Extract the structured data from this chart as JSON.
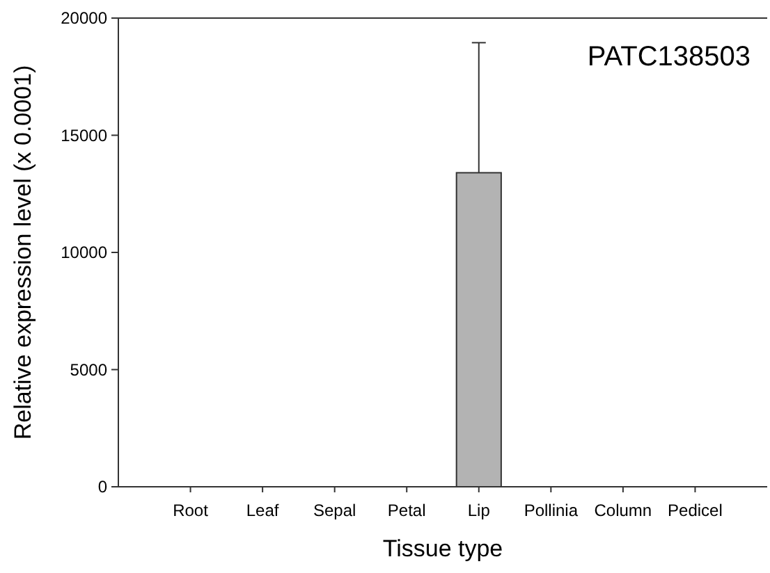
{
  "chart_data": {
    "type": "bar",
    "title": "PATC138503",
    "xlabel": "Tissue type",
    "ylabel": "Relative expression level (x 0.0001)",
    "categories": [
      "Root",
      "Leaf",
      "Sepal",
      "Petal",
      "Lip",
      "Pollinia",
      "Column",
      "Pedicel"
    ],
    "values": [
      0,
      0,
      0,
      0,
      13400,
      0,
      0,
      0
    ],
    "errors": [
      null,
      null,
      null,
      null,
      5550,
      null,
      null,
      null
    ],
    "color": "#b3b3b3",
    "ylim": [
      0,
      20000
    ],
    "yticks": [
      0,
      5000,
      10000,
      15000,
      20000
    ],
    "grid": false
  }
}
